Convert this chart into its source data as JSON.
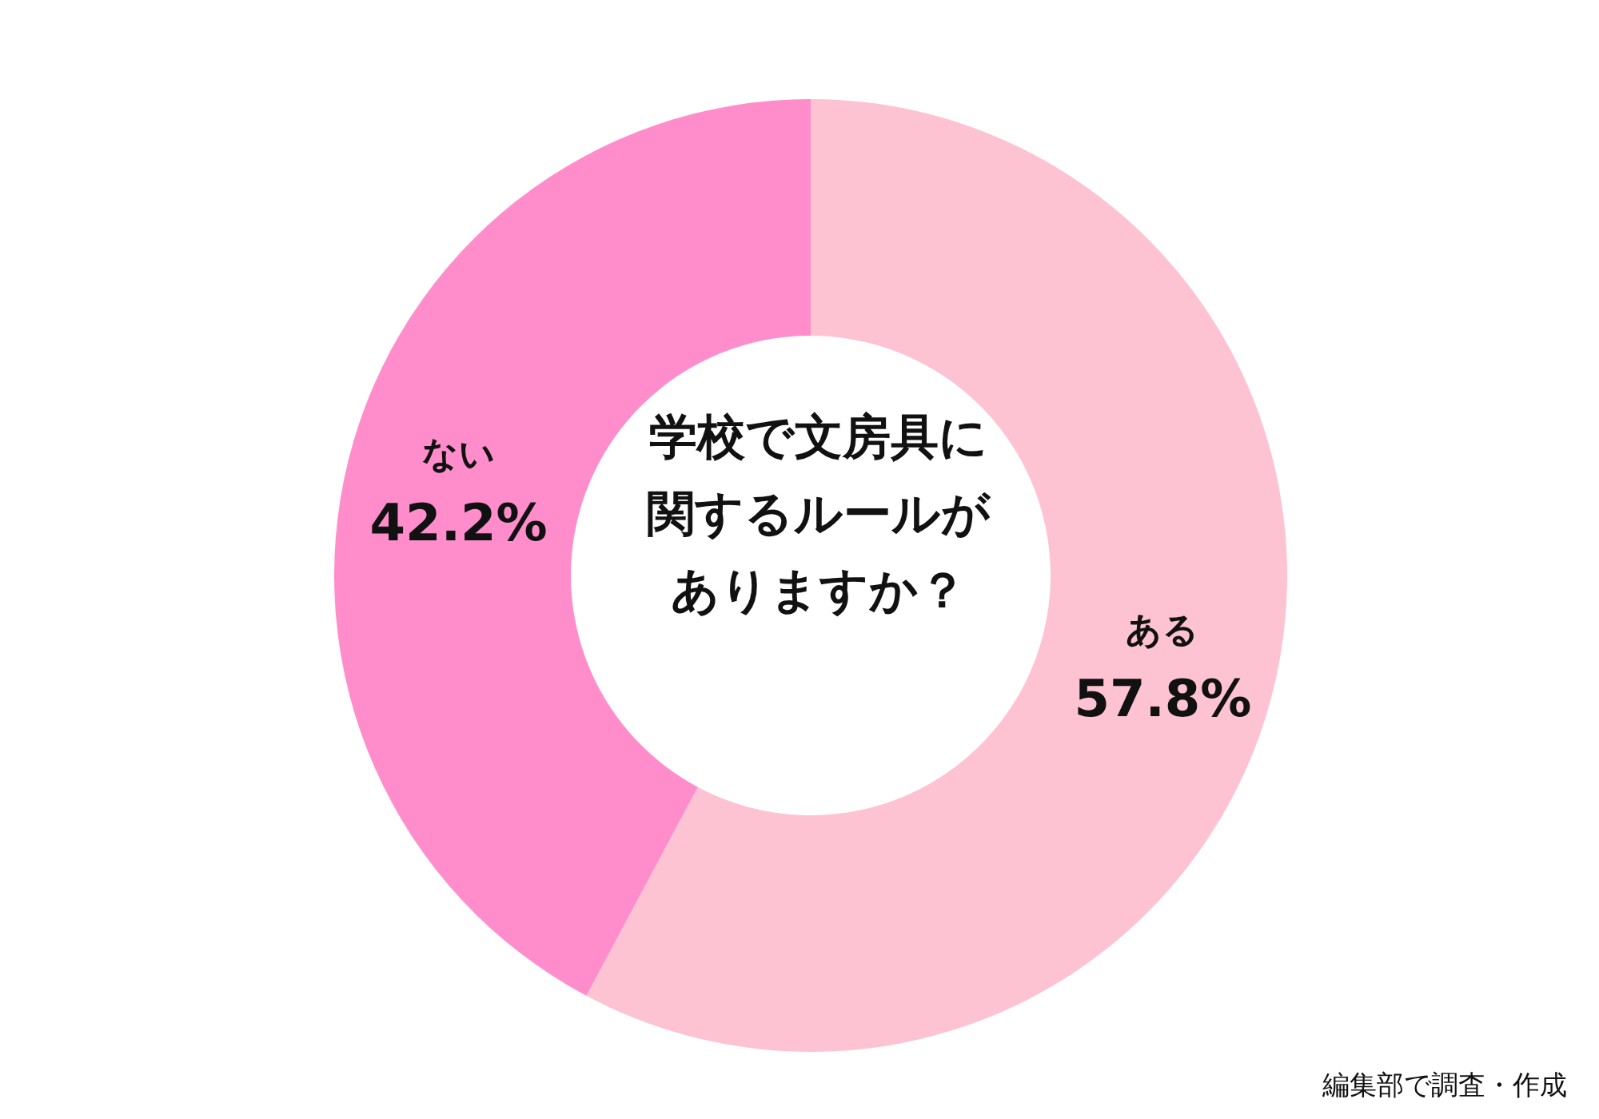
{
  "chart_data": {
    "type": "donut",
    "title": "学校で文房具に関するルールがありますか？",
    "categories": [
      "ある",
      "ない"
    ],
    "values": [
      57.8,
      42.2
    ],
    "colors": [
      "#fec3d3",
      "#ff8dcc"
    ],
    "value_labels": [
      "57.8%",
      "42.2%"
    ],
    "legend": false,
    "annotations": [
      "編集部で調査・作成"
    ]
  }
}
